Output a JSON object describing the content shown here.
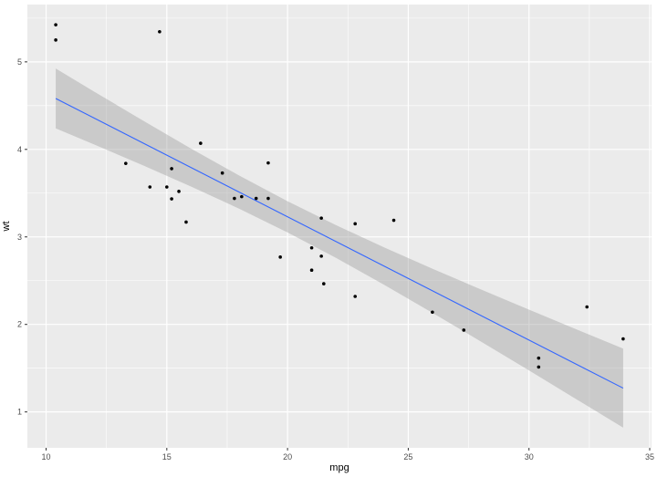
{
  "chart_data": {
    "type": "scatter",
    "title": "",
    "xlabel": "mpg",
    "ylabel": "wt",
    "xlim": [
      9.225,
      35.075
    ],
    "ylim": [
      0.59,
      5.655
    ],
    "grid": true,
    "legend_position": "none",
    "panel_bg": "#EBEBEB",
    "grid_color": "#FFFFFF",
    "point_color": "#000000",
    "tick_color": "#333333",
    "tick_label_color": "#4D4D4D",
    "x_major_ticks": [
      10,
      15,
      20,
      25,
      30,
      35
    ],
    "x_minor_ticks": [
      12.5,
      17.5,
      22.5,
      27.5,
      32.5
    ],
    "y_major_ticks": [
      1,
      2,
      3,
      4,
      5
    ],
    "y_minor_ticks": [
      1.5,
      2.5,
      3.5,
      4.5,
      5.5
    ],
    "points": [
      [
        21.0,
        2.62
      ],
      [
        21.0,
        2.875
      ],
      [
        22.8,
        2.32
      ],
      [
        21.4,
        3.215
      ],
      [
        18.7,
        3.44
      ],
      [
        18.1,
        3.46
      ],
      [
        14.3,
        3.57
      ],
      [
        24.4,
        3.19
      ],
      [
        22.8,
        3.15
      ],
      [
        19.2,
        3.44
      ],
      [
        17.8,
        3.44
      ],
      [
        16.4,
        4.07
      ],
      [
        17.3,
        3.73
      ],
      [
        15.2,
        3.78
      ],
      [
        10.4,
        5.25
      ],
      [
        10.4,
        5.424
      ],
      [
        14.7,
        5.345
      ],
      [
        32.4,
        2.2
      ],
      [
        30.4,
        1.615
      ],
      [
        33.9,
        1.835
      ],
      [
        21.5,
        2.465
      ],
      [
        15.5,
        3.52
      ],
      [
        15.2,
        3.435
      ],
      [
        13.3,
        3.84
      ],
      [
        19.2,
        3.845
      ],
      [
        27.3,
        1.935
      ],
      [
        26.0,
        2.14
      ],
      [
        15.8,
        3.17
      ],
      [
        19.7,
        2.77
      ],
      [
        15.0,
        3.57
      ],
      [
        21.4,
        2.78
      ],
      [
        30.4,
        1.513
      ]
    ],
    "smooth": {
      "method": "lm",
      "color": "#3366FF",
      "x": [
        10.4,
        33.9
      ],
      "y": [
        4.582,
        1.272
      ]
    },
    "ribbon": {
      "fill": "#999999",
      "opacity": 0.4,
      "x": [
        10.4,
        12,
        14,
        16,
        18,
        20,
        22,
        24,
        26,
        28,
        30,
        32,
        33.9
      ],
      "upper": [
        4.924,
        4.659,
        4.331,
        4.01,
        3.701,
        3.408,
        3.136,
        2.88,
        2.637,
        2.401,
        2.169,
        1.94,
        1.724
      ],
      "lower": [
        4.24,
        4.055,
        3.819,
        3.576,
        3.322,
        3.051,
        2.761,
        2.453,
        2.133,
        1.806,
        1.474,
        1.139,
        0.82
      ]
    }
  }
}
